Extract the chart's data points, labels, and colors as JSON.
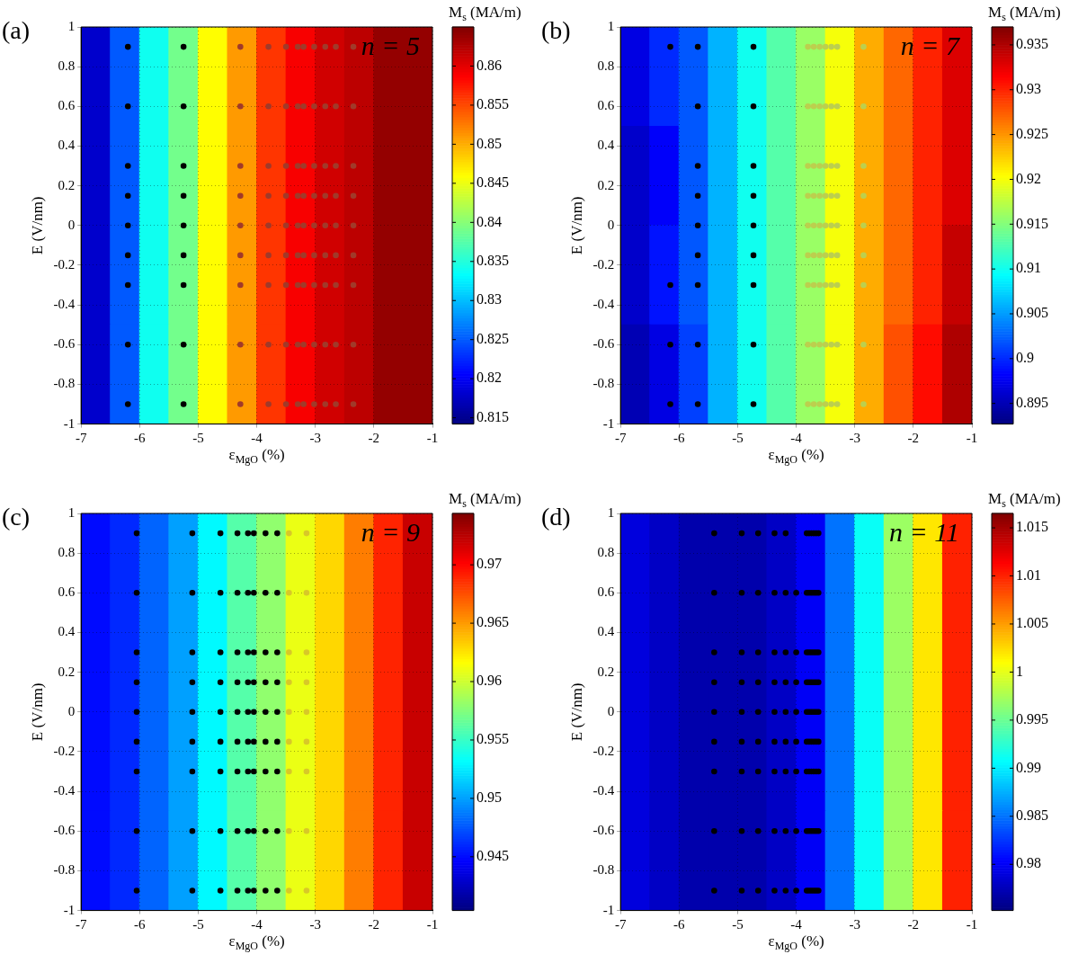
{
  "chart_data": [
    {
      "type": "heatmap",
      "title": "(a)",
      "annotations": [
        "n = 5"
      ],
      "xlabel": "ε$_{MgO}$ (%)",
      "ylabel": "E (V/nm)",
      "clabel": "M$_{s}$ (MA/m)",
      "x": [
        -6.75,
        -6.25,
        -5.75,
        -5.25,
        -4.75,
        -4.25,
        -3.75,
        -3.25,
        -2.75,
        -2.25,
        -1.75,
        -1.25
      ],
      "y": [
        0.75,
        0.25,
        -0.25,
        -0.75
      ],
      "cells": [
        [
          0.818,
          0.825,
          0.834,
          0.839,
          0.846,
          0.851,
          0.856,
          0.859,
          0.861,
          0.862,
          0.864,
          0.864
        ],
        [
          0.818,
          0.825,
          0.834,
          0.839,
          0.846,
          0.851,
          0.856,
          0.859,
          0.861,
          0.862,
          0.864,
          0.864
        ],
        [
          0.818,
          0.825,
          0.834,
          0.839,
          0.846,
          0.851,
          0.856,
          0.859,
          0.861,
          0.862,
          0.864,
          0.864
        ],
        [
          0.818,
          0.825,
          0.834,
          0.839,
          0.846,
          0.851,
          0.856,
          0.859,
          0.861,
          0.862,
          0.864,
          0.864
        ]
      ],
      "clim": [
        0.8142,
        0.865
      ],
      "cticks": [
        0.815,
        0.82,
        0.825,
        0.83,
        0.835,
        0.84,
        0.845,
        0.85,
        0.855,
        0.86
      ],
      "xlim": [
        -7,
        -1
      ],
      "xticks": [
        -7,
        -6,
        -5,
        -4,
        -3,
        -2,
        -1
      ],
      "ylim": [
        -1,
        1
      ],
      "yticks": [
        -1,
        -0.8,
        -0.6,
        -0.4,
        -0.2,
        0,
        0.2,
        0.4,
        0.6,
        0.8,
        1
      ],
      "grid": true,
      "marker": "circle",
      "series": [
        {
          "type": "scatter",
          "color": "#000000",
          "x": [
            -6.2,
            -6.2,
            -6.2,
            -6.2,
            -6.2,
            -6.2,
            -6.2,
            -6.2,
            -6.2,
            -5.25,
            -5.25,
            -5.25,
            -5.25,
            -5.25,
            -5.25,
            -5.25,
            -5.25,
            -5.25
          ],
          "values": [
            0.9,
            0.6,
            0.3,
            0.15,
            0,
            -0.15,
            -0.3,
            -0.6,
            -0.9,
            0.9,
            0.6,
            0.3,
            0.15,
            0,
            -0.15,
            -0.3,
            -0.6,
            -0.9
          ]
        },
        {
          "type": "scatter",
          "color": "#a03a2a",
          "x": [
            -4.28,
            -4.28,
            -4.28,
            -4.28,
            -4.28,
            -4.28,
            -4.28,
            -4.28,
            -4.28,
            -3.8,
            -3.8,
            -3.8,
            -3.8,
            -3.8,
            -3.8,
            -3.8,
            -3.8,
            -3.8,
            -3.5,
            -3.5,
            -3.5,
            -3.5,
            -3.5,
            -3.5,
            -3.5,
            -3.5,
            -3.5,
            -3.3,
            -3.3,
            -3.3,
            -3.3,
            -3.3,
            -3.3,
            -3.3,
            -3.3,
            -3.3,
            -3.2,
            -3.2,
            -3.2,
            -3.2,
            -3.2,
            -3.2,
            -3.2,
            -3.2,
            -3.2,
            -3.02,
            -3.02,
            -3.02,
            -3.02,
            -3.02,
            -3.02,
            -3.02,
            -3.02,
            -3.02,
            -2.83,
            -2.83,
            -2.83,
            -2.83,
            -2.83,
            -2.83,
            -2.83,
            -2.83,
            -2.83,
            -2.65,
            -2.65,
            -2.65,
            -2.65,
            -2.65,
            -2.65,
            -2.65,
            -2.65,
            -2.65,
            -2.35,
            -2.35,
            -2.35,
            -2.35,
            -2.35,
            -2.35,
            -2.35,
            -2.35,
            -2.35
          ],
          "values": [
            0.9,
            0.6,
            0.3,
            0.15,
            0,
            -0.15,
            -0.3,
            -0.6,
            -0.9,
            0.9,
            0.6,
            0.3,
            0.15,
            0,
            -0.15,
            -0.3,
            -0.6,
            -0.9,
            0.9,
            0.6,
            0.3,
            0.15,
            0,
            -0.15,
            -0.3,
            -0.6,
            -0.9,
            0.9,
            0.6,
            0.3,
            0.15,
            0,
            -0.15,
            -0.3,
            -0.6,
            -0.9,
            0.9,
            0.6,
            0.3,
            0.15,
            0,
            -0.15,
            -0.3,
            -0.6,
            -0.9,
            0.9,
            0.6,
            0.3,
            0.15,
            0,
            -0.15,
            -0.3,
            -0.6,
            -0.9,
            0.9,
            0.6,
            0.3,
            0.15,
            0,
            -0.15,
            -0.3,
            -0.6,
            -0.9,
            0.9,
            0.6,
            0.3,
            0.15,
            0,
            -0.15,
            -0.3,
            -0.6,
            -0.9,
            0.9,
            0.6,
            0.3,
            0.15,
            0,
            -0.15,
            -0.3,
            -0.6,
            -0.9
          ]
        }
      ]
    },
    {
      "type": "heatmap",
      "title": "(b)",
      "annotations": [
        "n = 7"
      ],
      "xlabel": "ε$_{MgO}$ (%)",
      "ylabel": "E (V/nm)",
      "clabel": "M$_{s}$ (MA/m)",
      "x": [
        -6.75,
        -6.25,
        -5.75,
        -5.25,
        -4.75,
        -4.25,
        -3.75,
        -3.25,
        -2.75,
        -2.25,
        -1.75,
        -1.25
      ],
      "y": [
        0.75,
        0.25,
        -0.25,
        -0.75
      ],
      "cells": [
        [
          0.897,
          0.9,
          0.902,
          0.906,
          0.91,
          0.913,
          0.916,
          0.92,
          0.924,
          0.927,
          0.93,
          0.933
        ],
        [
          0.896,
          0.898,
          0.902,
          0.906,
          0.91,
          0.913,
          0.916,
          0.92,
          0.924,
          0.927,
          0.93,
          0.933
        ],
        [
          0.896,
          0.899,
          0.902,
          0.906,
          0.91,
          0.913,
          0.916,
          0.92,
          0.924,
          0.927,
          0.93,
          0.934
        ],
        [
          0.895,
          0.897,
          0.901,
          0.906,
          0.91,
          0.913,
          0.916,
          0.92,
          0.924,
          0.928,
          0.931,
          0.935
        ]
      ],
      "clim": [
        0.8927,
        0.937
      ],
      "cticks": [
        0.895,
        0.9,
        0.905,
        0.91,
        0.915,
        0.92,
        0.925,
        0.93,
        0.935
      ],
      "xlim": [
        -7,
        -1
      ],
      "xticks": [
        -7,
        -6,
        -5,
        -4,
        -3,
        -2,
        -1
      ],
      "ylim": [
        -1,
        1
      ],
      "yticks": [
        -1,
        -0.8,
        -0.6,
        -0.4,
        -0.2,
        0,
        0.2,
        0.4,
        0.6,
        0.8,
        1
      ],
      "grid": true,
      "marker": "circle",
      "series": [
        {
          "type": "scatter",
          "color": "#000000",
          "x": [
            -6.15,
            -6.15,
            -6.15,
            -6.15,
            -5.68,
            -5.68,
            -5.68,
            -5.68,
            -5.68,
            -5.68,
            -5.68,
            -5.68,
            -5.68,
            -4.73,
            -4.73,
            -4.73,
            -4.73,
            -4.73,
            -4.73,
            -4.73,
            -4.73,
            -4.73
          ],
          "values": [
            0.9,
            -0.3,
            -0.6,
            -0.9,
            0.9,
            0.6,
            0.3,
            0.15,
            0,
            -0.15,
            -0.3,
            -0.6,
            -0.9,
            0.9,
            0.6,
            0.3,
            0.15,
            0,
            -0.15,
            -0.3,
            -0.6,
            -0.9
          ]
        },
        {
          "type": "scatter",
          "color": "#bccf4e",
          "x": [
            -3.8,
            -3.8,
            -3.8,
            -3.8,
            -3.8,
            -3.8,
            -3.8,
            -3.8,
            -3.8,
            -3.7,
            -3.7,
            -3.7,
            -3.7,
            -3.7,
            -3.7,
            -3.7,
            -3.7,
            -3.7,
            -3.6,
            -3.6,
            -3.6,
            -3.6,
            -3.6,
            -3.6,
            -3.6,
            -3.6,
            -3.6,
            -3.5,
            -3.5,
            -3.5,
            -3.5,
            -3.5,
            -3.5,
            -3.5,
            -3.5,
            -3.5,
            -3.4,
            -3.4,
            -3.4,
            -3.4,
            -3.4,
            -3.4,
            -3.4,
            -3.4,
            -3.4,
            -3.3,
            -3.3,
            -3.3,
            -3.3,
            -3.3,
            -3.3,
            -3.3,
            -3.3,
            -3.3,
            -2.85,
            -2.85,
            -2.85,
            -2.85,
            -2.85,
            -2.85,
            -2.85,
            -2.85,
            -2.85
          ],
          "values": [
            0.9,
            0.6,
            0.3,
            0.15,
            0,
            -0.15,
            -0.3,
            -0.6,
            -0.9,
            0.9,
            0.6,
            0.3,
            0.15,
            0,
            -0.15,
            -0.3,
            -0.6,
            -0.9,
            0.9,
            0.6,
            0.3,
            0.15,
            0,
            -0.15,
            -0.3,
            -0.6,
            -0.9,
            0.9,
            0.6,
            0.3,
            0.15,
            0,
            -0.15,
            -0.3,
            -0.6,
            -0.9,
            0.9,
            0.6,
            0.3,
            0.15,
            0,
            -0.15,
            -0.3,
            -0.6,
            -0.9,
            0.9,
            0.6,
            0.3,
            0.15,
            0,
            -0.15,
            -0.3,
            -0.6,
            -0.9,
            0.9,
            0.6,
            0.3,
            0.15,
            0,
            -0.15,
            -0.3,
            -0.6,
            -0.9
          ]
        }
      ]
    },
    {
      "type": "heatmap",
      "title": "(c)",
      "annotations": [
        "n = 9"
      ],
      "xlabel": "ε$_{MgO}$ (%)",
      "ylabel": "E (V/nm)",
      "clabel": "M$_{s}$ (MA/m)",
      "x": [
        -6.75,
        -6.25,
        -5.75,
        -5.25,
        -4.75,
        -4.25,
        -3.75,
        -3.25,
        -2.75,
        -2.25,
        -1.75,
        -1.25
      ],
      "y": [
        0.75,
        0.25,
        -0.25,
        -0.75
      ],
      "cells": [
        [
          0.945,
          0.946,
          0.948,
          0.95,
          0.953,
          0.956,
          0.958,
          0.961,
          0.963,
          0.966,
          0.969,
          0.972
        ],
        [
          0.945,
          0.946,
          0.948,
          0.95,
          0.953,
          0.956,
          0.958,
          0.961,
          0.963,
          0.966,
          0.969,
          0.972
        ],
        [
          0.945,
          0.946,
          0.948,
          0.95,
          0.953,
          0.956,
          0.958,
          0.961,
          0.963,
          0.966,
          0.969,
          0.972
        ],
        [
          0.945,
          0.946,
          0.948,
          0.95,
          0.953,
          0.956,
          0.958,
          0.961,
          0.963,
          0.966,
          0.969,
          0.972
        ]
      ],
      "clim": [
        0.9404,
        0.9744
      ],
      "cticks": [
        0.945,
        0.95,
        0.955,
        0.96,
        0.965,
        0.97
      ],
      "xlim": [
        -7,
        -1
      ],
      "xticks": [
        -7,
        -6,
        -5,
        -4,
        -3,
        -2,
        -1
      ],
      "ylim": [
        -1,
        1
      ],
      "yticks": [
        -1,
        -0.8,
        -0.6,
        -0.4,
        -0.2,
        0,
        0.2,
        0.4,
        0.6,
        0.8,
        1
      ],
      "grid": true,
      "marker": "circle",
      "series": [
        {
          "type": "scatter",
          "color": "#000000",
          "x": [
            -6.05,
            -6.05,
            -6.05,
            -6.05,
            -6.05,
            -6.05,
            -6.05,
            -6.05,
            -6.05,
            -5.1,
            -5.1,
            -5.1,
            -5.1,
            -5.1,
            -5.1,
            -5.1,
            -5.1,
            -5.1,
            -4.62,
            -4.62,
            -4.62,
            -4.62,
            -4.62,
            -4.62,
            -4.62,
            -4.62,
            -4.62,
            -4.33,
            -4.33,
            -4.33,
            -4.33,
            -4.33,
            -4.33,
            -4.33,
            -4.33,
            -4.33,
            -4.15,
            -4.15,
            -4.15,
            -4.15,
            -4.15,
            -4.15,
            -4.15,
            -4.15,
            -4.15,
            -4.05,
            -4.05,
            -4.05,
            -4.05,
            -4.05,
            -4.05,
            -4.05,
            -4.05,
            -4.05,
            -3.85,
            -3.85,
            -3.85,
            -3.85,
            -3.85,
            -3.85,
            -3.85,
            -3.85,
            -3.85,
            -3.65,
            -3.65,
            -3.65,
            -3.65,
            -3.65,
            -3.65,
            -3.65,
            -3.65,
            -3.65
          ],
          "values": [
            0.9,
            0.6,
            0.3,
            0.15,
            0,
            -0.15,
            -0.3,
            -0.6,
            -0.9,
            0.9,
            0.6,
            0.3,
            0.15,
            0,
            -0.15,
            -0.3,
            -0.6,
            -0.9,
            0.9,
            0.6,
            0.3,
            0.15,
            0,
            -0.15,
            -0.3,
            -0.6,
            -0.9,
            0.9,
            0.6,
            0.3,
            0.15,
            0,
            -0.15,
            -0.3,
            -0.6,
            -0.9,
            0.9,
            0.6,
            0.3,
            0.15,
            0,
            -0.15,
            -0.3,
            -0.6,
            -0.9,
            0.9,
            0.6,
            0.3,
            0.15,
            0,
            -0.15,
            -0.3,
            -0.6,
            -0.9,
            0.9,
            0.6,
            0.3,
            0.15,
            0,
            -0.15,
            -0.3,
            -0.6,
            -0.9,
            0.9,
            0.6,
            0.3,
            0.15,
            0,
            -0.15,
            -0.3,
            -0.6,
            -0.9
          ]
        },
        {
          "type": "scatter",
          "color": "#d8c828",
          "x": [
            -3.45,
            -3.45,
            -3.45,
            -3.45,
            -3.45,
            -3.45,
            -3.45,
            -3.45,
            -3.45,
            -3.15,
            -3.15,
            -3.15,
            -3.15,
            -3.15,
            -3.15,
            -3.15,
            -3.15,
            -3.15
          ],
          "values": [
            0.9,
            0.6,
            0.3,
            0.15,
            0,
            -0.15,
            -0.3,
            -0.6,
            -0.9,
            0.9,
            0.6,
            0.3,
            0.15,
            0,
            -0.15,
            -0.3,
            -0.6,
            -0.9
          ]
        }
      ]
    },
    {
      "type": "heatmap",
      "title": "(d)",
      "annotations": [
        "n = 11"
      ],
      "xlabel": "ε$_{MgO}$ (%)",
      "ylabel": "E (V/nm)",
      "clabel": "M$_{s}$ (MA/m)",
      "x": [
        -6.75,
        -6.25,
        -5.75,
        -5.25,
        -4.75,
        -4.25,
        -3.75,
        -3.25,
        -2.75,
        -2.25,
        -1.75,
        -1.25
      ],
      "y": [
        0.75,
        0.25,
        -0.25,
        -0.75
      ],
      "cells": [
        [
          0.979,
          0.978,
          0.977,
          0.977,
          0.977,
          0.978,
          0.98,
          0.985,
          0.991,
          0.997,
          1.002,
          1.01
        ],
        [
          0.979,
          0.978,
          0.977,
          0.977,
          0.977,
          0.978,
          0.98,
          0.985,
          0.991,
          0.997,
          1.002,
          1.01
        ],
        [
          0.979,
          0.978,
          0.977,
          0.977,
          0.977,
          0.978,
          0.98,
          0.985,
          0.991,
          0.997,
          1.002,
          1.01
        ],
        [
          0.979,
          0.978,
          0.977,
          0.977,
          0.977,
          0.978,
          0.98,
          0.985,
          0.991,
          0.997,
          1.002,
          1.01
        ]
      ],
      "clim": [
        0.9752,
        1.0165
      ],
      "cticks": [
        0.98,
        0.985,
        0.99,
        0.995,
        1,
        1.005,
        1.01,
        1.015
      ],
      "xlim": [
        -7,
        -1
      ],
      "xticks": [
        -7,
        -6,
        -5,
        -4,
        -3,
        -2,
        -1
      ],
      "ylim": [
        -1,
        1
      ],
      "yticks": [
        -1,
        -0.8,
        -0.6,
        -0.4,
        -0.2,
        0,
        0.2,
        0.4,
        0.6,
        0.8,
        1
      ],
      "grid": true,
      "marker": "circle",
      "series": [
        {
          "type": "scatter",
          "color": "#000000",
          "x": [
            -5.4,
            -5.4,
            -5.4,
            -5.4,
            -5.4,
            -5.4,
            -5.4,
            -5.4,
            -5.4,
            -4.93,
            -4.93,
            -4.93,
            -4.93,
            -4.93,
            -4.93,
            -4.93,
            -4.93,
            -4.93,
            -4.65,
            -4.65,
            -4.65,
            -4.65,
            -4.65,
            -4.65,
            -4.65,
            -4.65,
            -4.65,
            -4.37,
            -4.37,
            -4.37,
            -4.37,
            -4.37,
            -4.37,
            -4.37,
            -4.37,
            -4.37,
            -4.18,
            -4.18,
            -4.18,
            -4.18,
            -4.18,
            -4.18,
            -4.18,
            -4.18,
            -4.18,
            -4,
            -4,
            -4,
            -4,
            -4,
            -4,
            -4,
            -4,
            -3.82,
            -3.82,
            -3.82,
            -3.82,
            -3.82,
            -3.82,
            -3.82,
            -3.82,
            -3.82,
            -3.78,
            -3.78,
            -3.78,
            -3.78,
            -3.78,
            -3.78,
            -3.78,
            -3.78,
            -3.78,
            -3.74,
            -3.74,
            -3.74,
            -3.74,
            -3.74,
            -3.74,
            -3.74,
            -3.74,
            -3.74,
            -3.7,
            -3.7,
            -3.7,
            -3.7,
            -3.7,
            -3.7,
            -3.7,
            -3.7,
            -3.7,
            -3.66,
            -3.66,
            -3.66,
            -3.66,
            -3.66,
            -3.66,
            -3.66,
            -3.66,
            -3.66,
            -3.62,
            -3.62,
            -3.62,
            -3.62,
            -3.62,
            -3.62,
            -3.62,
            -3.62,
            -3.62
          ],
          "values": [
            0.9,
            0.6,
            0.3,
            0.15,
            0,
            -0.15,
            -0.3,
            -0.6,
            -0.9,
            0.9,
            0.6,
            0.3,
            0.15,
            0,
            -0.15,
            -0.3,
            -0.6,
            -0.9,
            0.9,
            0.6,
            0.3,
            0.15,
            0,
            -0.15,
            -0.3,
            -0.6,
            -0.9,
            0.9,
            0.6,
            0.3,
            0.15,
            0,
            -0.15,
            -0.3,
            -0.6,
            -0.9,
            0.9,
            0.6,
            0.3,
            0.15,
            0,
            -0.15,
            -0.3,
            -0.6,
            -0.9,
            0.6,
            0.3,
            0.15,
            0,
            -0.15,
            -0.3,
            -0.6,
            -0.9,
            0.9,
            0.6,
            0.3,
            0.15,
            0,
            -0.15,
            -0.3,
            -0.6,
            -0.9,
            0.9,
            0.6,
            0.3,
            0.15,
            0,
            -0.15,
            -0.3,
            -0.6,
            -0.9,
            0.9,
            0.6,
            0.3,
            0.15,
            0,
            -0.15,
            -0.3,
            -0.6,
            -0.9,
            0.9,
            0.6,
            0.3,
            0.15,
            0,
            -0.15,
            -0.3,
            -0.6,
            -0.9,
            0.9,
            0.6,
            0.3,
            0.15,
            0,
            -0.15,
            -0.3,
            -0.6,
            -0.9,
            0.9,
            0.6,
            0.3,
            0.15,
            0,
            -0.15,
            -0.3,
            -0.6,
            -0.9
          ]
        }
      ]
    }
  ]
}
